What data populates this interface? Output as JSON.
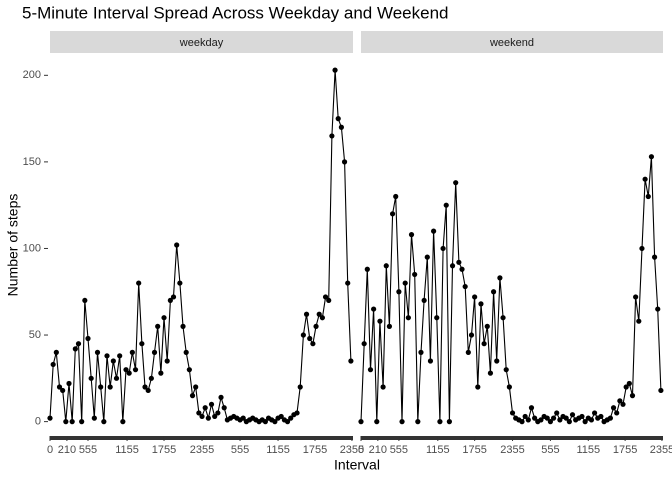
{
  "title": "5-Minute Interval Spread Across Weekday and Weekend",
  "x_label": "Interval",
  "y_label": "Number of steps",
  "chart_data": [
    {
      "type": "line",
      "panel": "weekday",
      "color": "#000000",
      "x": [
        0,
        3,
        6,
        9,
        12,
        15,
        18,
        21,
        24,
        27,
        30,
        33,
        36,
        39,
        42,
        45,
        48,
        51,
        54,
        57,
        60,
        63,
        66,
        69,
        72,
        75,
        78,
        81,
        84,
        87,
        90,
        93,
        96,
        99,
        102,
        105,
        108,
        111,
        114,
        117,
        120,
        123,
        126,
        129,
        132,
        135,
        138,
        141,
        144,
        147,
        150,
        153,
        156,
        159,
        162,
        165,
        168,
        171,
        174,
        177,
        180,
        183,
        186,
        189,
        192,
        195,
        198,
        201,
        204,
        207,
        210,
        213,
        216,
        219,
        222,
        225,
        228,
        231,
        234,
        237,
        240,
        243,
        246,
        249,
        252,
        255,
        258,
        261,
        264,
        267,
        270,
        273,
        276,
        279,
        282,
        285
      ],
      "values": [
        2,
        33,
        40,
        20,
        18,
        0,
        22,
        0,
        42,
        45,
        0,
        70,
        48,
        25,
        2,
        40,
        20,
        0,
        38,
        20,
        35,
        25,
        38,
        0,
        30,
        28,
        40,
        30,
        80,
        45,
        20,
        18,
        25,
        40,
        55,
        28,
        60,
        35,
        70,
        72,
        102,
        80,
        55,
        40,
        30,
        15,
        20,
        5,
        3,
        8,
        2,
        10,
        3,
        5,
        14,
        8,
        1,
        2,
        3,
        2,
        1,
        2,
        0,
        1,
        2,
        1,
        0,
        1,
        0,
        2,
        1,
        0,
        2,
        3,
        1,
        0,
        2,
        4,
        5,
        20,
        50,
        62,
        48,
        45,
        55,
        62,
        60,
        72,
        70,
        165,
        203,
        175,
        170,
        150,
        80,
        35
      ],
      "xlim": [
        0,
        287
      ],
      "xticks": [
        {
          "value": 0,
          "label": "0"
        },
        {
          "value": 16,
          "label": "210"
        },
        {
          "value": 36,
          "label": "555"
        },
        {
          "value": 73,
          "label": "1155"
        },
        {
          "value": 108,
          "label": "1755"
        },
        {
          "value": 144,
          "label": "2355"
        },
        {
          "value": 180,
          "label": "555"
        },
        {
          "value": 216,
          "label": "1155"
        },
        {
          "value": 251,
          "label": "1755"
        },
        {
          "value": 286,
          "label": "2355"
        }
      ],
      "ylim": [
        -6,
        210
      ],
      "yticks": [
        0,
        50,
        100,
        150,
        200
      ]
    },
    {
      "type": "line",
      "panel": "weekend",
      "color": "#000000",
      "x": [
        0,
        3,
        6,
        9,
        12,
        15,
        18,
        21,
        24,
        27,
        30,
        33,
        36,
        39,
        42,
        45,
        48,
        51,
        54,
        57,
        60,
        63,
        66,
        69,
        72,
        75,
        78,
        81,
        84,
        87,
        90,
        93,
        96,
        99,
        102,
        105,
        108,
        111,
        114,
        117,
        120,
        123,
        126,
        129,
        132,
        135,
        138,
        141,
        144,
        147,
        150,
        153,
        156,
        159,
        162,
        165,
        168,
        171,
        174,
        177,
        180,
        183,
        186,
        189,
        192,
        195,
        198,
        201,
        204,
        207,
        210,
        213,
        216,
        219,
        222,
        225,
        228,
        231,
        234,
        237,
        240,
        243,
        246,
        249,
        252,
        255,
        258,
        261,
        264,
        267,
        270,
        273,
        276,
        279,
        282,
        285
      ],
      "values": [
        0,
        45,
        88,
        30,
        65,
        0,
        58,
        20,
        90,
        55,
        120,
        130,
        75,
        0,
        80,
        60,
        108,
        85,
        0,
        40,
        70,
        95,
        35,
        110,
        60,
        0,
        100,
        125,
        0,
        90,
        138,
        92,
        88,
        78,
        40,
        50,
        72,
        20,
        68,
        45,
        55,
        28,
        75,
        35,
        83,
        60,
        30,
        20,
        5,
        2,
        1,
        0,
        3,
        1,
        8,
        2,
        0,
        1,
        3,
        2,
        0,
        2,
        5,
        1,
        3,
        2,
        0,
        4,
        1,
        2,
        3,
        0,
        2,
        1,
        5,
        2,
        3,
        0,
        1,
        2,
        8,
        5,
        12,
        10,
        20,
        22,
        15,
        72,
        58,
        100,
        140,
        130,
        153,
        95,
        65,
        18
      ],
      "xlim": [
        0,
        287
      ],
      "xticks": [
        {
          "value": 0,
          "label": "0"
        },
        {
          "value": 16,
          "label": "210"
        },
        {
          "value": 36,
          "label": "555"
        },
        {
          "value": 73,
          "label": "1155"
        },
        {
          "value": 108,
          "label": "1755"
        },
        {
          "value": 144,
          "label": "2355"
        },
        {
          "value": 180,
          "label": "555"
        },
        {
          "value": 216,
          "label": "1155"
        },
        {
          "value": 251,
          "label": "1755"
        },
        {
          "value": 286,
          "label": "2355"
        }
      ],
      "ylim": [
        -6,
        210
      ],
      "yticks": [
        0,
        50,
        100,
        150,
        200
      ]
    }
  ]
}
